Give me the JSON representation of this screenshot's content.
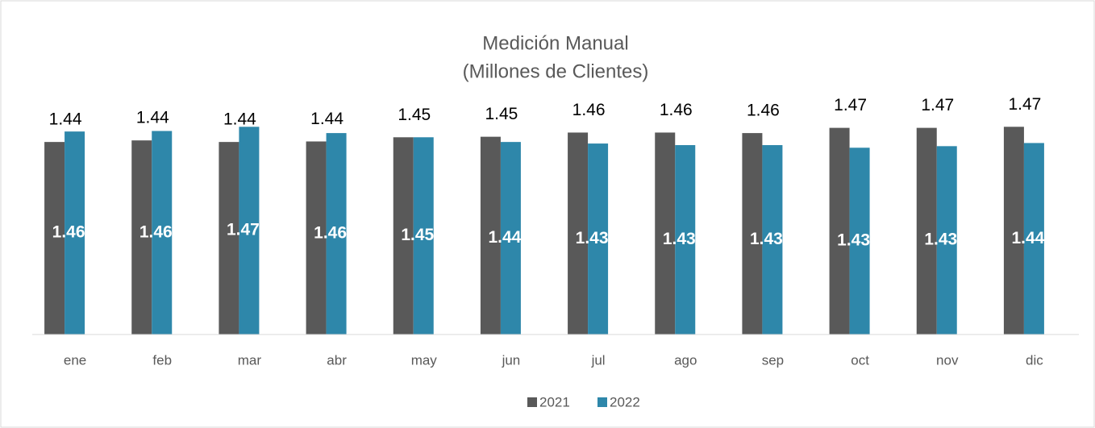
{
  "chart_data": {
    "type": "bar",
    "title": "Medición Manual",
    "subtitle": "(Millones de Clientes)",
    "categories": [
      "ene",
      "feb",
      "mar",
      "abr",
      "may",
      "jun",
      "jul",
      "ago",
      "sep",
      "oct",
      "nov",
      "dic"
    ],
    "series": [
      {
        "name": "2021",
        "color": "#595959",
        "values": [
          1.438,
          1.441,
          1.438,
          1.439,
          1.447,
          1.448,
          1.456,
          1.456,
          1.455,
          1.465,
          1.465,
          1.467
        ],
        "value_labels": [
          "1.44",
          "1.44",
          "1.44",
          "1.44",
          "1.45",
          "1.45",
          "1.46",
          "1.46",
          "1.46",
          "1.47",
          "1.47",
          "1.47"
        ]
      },
      {
        "name": "2022",
        "color": "#2e87aa",
        "values": [
          1.458,
          1.459,
          1.467,
          1.455,
          1.447,
          1.438,
          1.435,
          1.432,
          1.432,
          1.427,
          1.43,
          1.436
        ],
        "value_labels": [
          "1.46",
          "1.46",
          "1.47",
          "1.46",
          "1.45",
          "1.44",
          "1.43",
          "1.43",
          "1.43",
          "1.43",
          "1.43",
          "1.44"
        ]
      }
    ],
    "ylim": [
      1.07,
      1.62
    ],
    "legend": "bottom"
  }
}
